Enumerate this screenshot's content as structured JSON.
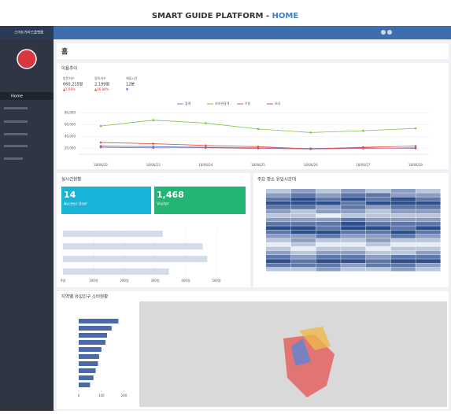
{
  "header": {
    "title_prefix": "SMART GUIDE PLATFORM - ",
    "title_highlight": "HOME",
    "app_name": "스마트가이드플랫폼"
  },
  "sidebar": {
    "menu": [
      "Home"
    ]
  },
  "breadcrumb": {
    "title": "홈"
  },
  "usage": {
    "title": "이용추이",
    "stats": [
      {
        "label": "방문자수",
        "value": "660,215명",
        "change": "▲1.08%"
      },
      {
        "label": "접속자수",
        "value": "2,199명",
        "change": "▲16.84%"
      },
      {
        "label": "체류시간",
        "value": "12분",
        "change": "▼"
      }
    ],
    "chart_data": {
      "type": "line",
      "categories": [
        "18/06/22",
        "18/06/23",
        "18/06/24",
        "18/06/25",
        "18/06/26",
        "18/06/27",
        "18/06/28"
      ],
      "series": [
        {
          "name": "합계",
          "color": "#5b7fd6",
          "values": [
            24000,
            23000,
            22000,
            21000,
            20000,
            21000,
            20000
          ]
        },
        {
          "name": "외지관광객",
          "color": "#7dc242",
          "values": [
            58000,
            68000,
            63000,
            53000,
            47000,
            50000,
            54000
          ]
        },
        {
          "name": "주민",
          "color": "#e8553a",
          "values": [
            30000,
            28000,
            25000,
            23000,
            19000,
            22000,
            24000
          ]
        },
        {
          "name": "외국",
          "color": "#c0507a",
          "values": [
            22000,
            21000,
            21000,
            20000,
            19000,
            20000,
            21000
          ]
        }
      ],
      "ylim": [
        10000,
        85000
      ],
      "yticks": [
        {
          "value": 20000,
          "label": "20,000"
        },
        {
          "value": 40000,
          "label": "40,000"
        },
        {
          "value": 60000,
          "label": "60,000"
        },
        {
          "value": 80000,
          "label": "80,000"
        }
      ]
    }
  },
  "realtime": {
    "title": "실시간현황",
    "cards": [
      {
        "value": "14",
        "label": "Access User"
      },
      {
        "value": "1,468",
        "label": "Visitor"
      }
    ],
    "chart_data": {
      "type": "hbar",
      "values": [
        325,
        455,
        470,
        345
      ],
      "color": "#d4dbea",
      "xlim": [
        0,
        500
      ],
      "xticks": [
        {
          "value": 0,
          "label": "0명"
        },
        {
          "value": 100,
          "label": "100명"
        },
        {
          "value": 200,
          "label": "200명"
        },
        {
          "value": 300,
          "label": "300명"
        },
        {
          "value": 400,
          "label": "400명"
        },
        {
          "value": 500,
          "label": "500명"
        }
      ]
    }
  },
  "heatmap": {
    "title": "주요 명소 유입시간대",
    "chart_data": {
      "type": "heatmap",
      "values": [
        [
          2,
          3,
          2,
          3,
          2,
          3,
          2
        ],
        [
          3,
          4,
          3,
          4,
          4,
          3,
          3
        ],
        [
          4,
          5,
          4,
          5,
          4,
          5,
          4
        ],
        [
          5,
          5,
          5,
          4,
          5,
          5,
          5
        ],
        [
          4,
          4,
          3,
          4,
          3,
          4,
          4
        ],
        [
          3,
          2,
          3,
          3,
          2,
          3,
          3
        ],
        [
          2,
          2,
          1,
          2,
          2,
          2,
          2
        ],
        [
          3,
          3,
          3,
          4,
          3,
          3,
          3
        ],
        [
          4,
          4,
          4,
          5,
          4,
          4,
          4
        ],
        [
          5,
          5,
          4,
          5,
          5,
          4,
          5
        ],
        [
          4,
          5,
          5,
          4,
          4,
          5,
          4
        ],
        [
          3,
          3,
          4,
          3,
          3,
          4,
          3
        ],
        [
          2,
          3,
          2,
          2,
          3,
          2,
          2
        ],
        [
          1,
          2,
          1,
          1,
          2,
          1,
          1
        ],
        [
          2,
          1,
          2,
          2,
          1,
          2,
          2
        ],
        [
          3,
          2,
          3,
          3,
          2,
          2,
          3
        ],
        [
          4,
          3,
          4,
          4,
          3,
          4,
          4
        ],
        [
          5,
          4,
          5,
          5,
          4,
          5,
          5
        ],
        [
          4,
          4,
          4,
          3,
          4,
          4,
          3
        ],
        [
          2,
          2,
          3,
          2,
          2,
          3,
          2
        ]
      ],
      "vlim": [
        1,
        5
      ]
    }
  },
  "consumption": {
    "title": "지역별 유입인구 소비현황",
    "chart_data": {
      "type": "hbar",
      "values": [
        175,
        145,
        125,
        118,
        100,
        90,
        85,
        75,
        65,
        50
      ],
      "color": "#4a6aa8",
      "xlim": [
        0,
        250
      ],
      "xticks": [
        0,
        100,
        200
      ]
    }
  }
}
